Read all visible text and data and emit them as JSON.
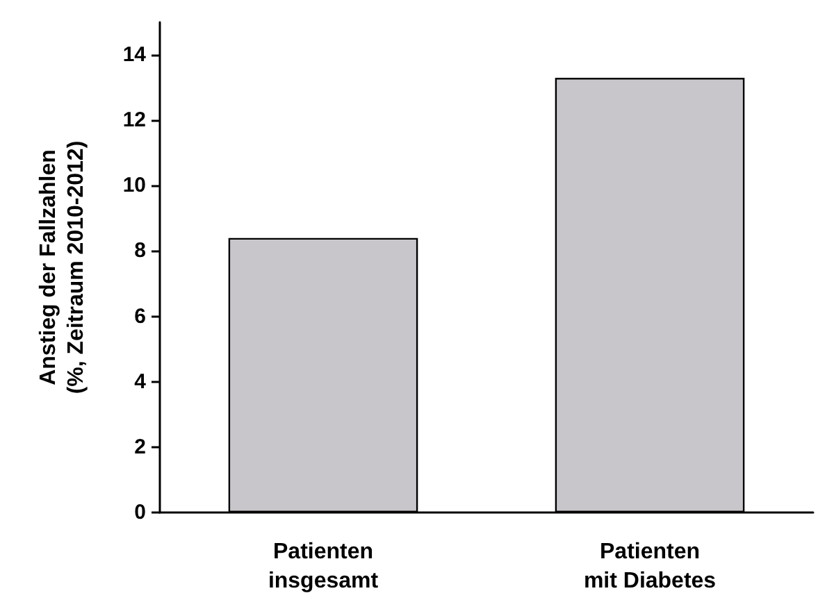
{
  "chart_data": {
    "type": "bar",
    "ylabel": "Anstieg der Fallzahlen\n(%, Zeitraum 2010-2012)",
    "categories": [
      "Patienten\ninsgesamt",
      "Patienten\nmit Diabetes"
    ],
    "values": [
      8.4,
      13.3
    ],
    "color": "#c8c6ca",
    "ylim": [
      0,
      15
    ],
    "yticks": [
      0,
      2,
      4,
      6,
      8,
      10,
      12,
      14
    ],
    "grid": false
  }
}
